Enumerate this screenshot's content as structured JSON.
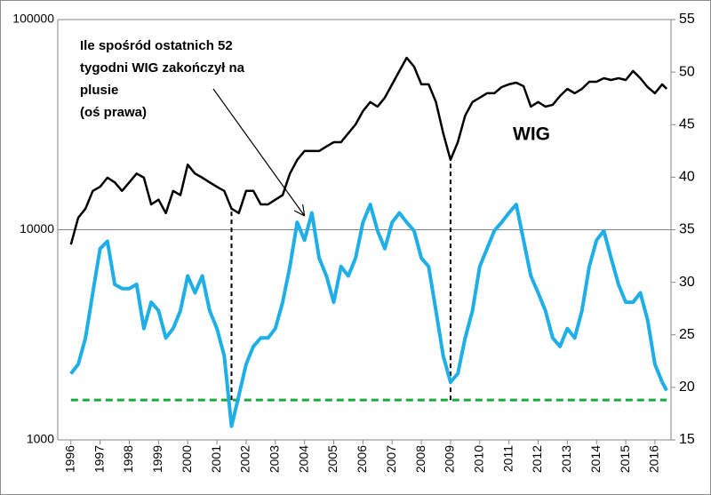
{
  "chart_data": {
    "type": "line",
    "annotation": [
      "Ile spośród ostatnich 52",
      "tygodni WIG zakończył na",
      "plusie",
      "(oś prawa)"
    ],
    "series_label": "WIG",
    "x": [
      1996.0,
      1996.25,
      1996.5,
      1996.75,
      1997.0,
      1997.25,
      1997.5,
      1997.75,
      1998.0,
      1998.25,
      1998.5,
      1998.75,
      1999.0,
      1999.25,
      1999.5,
      1999.75,
      2000.0,
      2000.25,
      2000.5,
      2000.75,
      2001.0,
      2001.25,
      2001.5,
      2001.75,
      2002.0,
      2002.25,
      2002.5,
      2002.75,
      2003.0,
      2003.25,
      2003.5,
      2003.75,
      2004.0,
      2004.25,
      2004.5,
      2004.75,
      2005.0,
      2005.25,
      2005.5,
      2005.75,
      2006.0,
      2006.25,
      2006.5,
      2006.75,
      2007.0,
      2007.25,
      2007.5,
      2007.75,
      2008.0,
      2008.25,
      2008.5,
      2008.75,
      2009.0,
      2009.25,
      2009.5,
      2009.75,
      2010.0,
      2010.25,
      2010.5,
      2010.75,
      2011.0,
      2011.25,
      2011.5,
      2011.75,
      2012.0,
      2012.25,
      2012.5,
      2012.75,
      2013.0,
      2013.25,
      2013.5,
      2013.75,
      2014.0,
      2014.25,
      2014.5,
      2014.75,
      2015.0,
      2015.25,
      2015.5,
      2015.75,
      2016.0,
      2016.25,
      2016.4
    ],
    "series": [
      {
        "name": "WIG",
        "color": "#000000",
        "axis": "y",
        "values": [
          8500,
          11400,
          12600,
          15300,
          16000,
          17700,
          16800,
          15300,
          16800,
          18500,
          17700,
          13200,
          13900,
          12000,
          15300,
          14600,
          20400,
          18500,
          17700,
          16800,
          16000,
          15300,
          12600,
          12000,
          15300,
          15300,
          13200,
          13200,
          13900,
          14600,
          18500,
          21500,
          23700,
          23700,
          23700,
          24900,
          26100,
          26100,
          28800,
          31700,
          36700,
          40500,
          38500,
          42500,
          49200,
          56900,
          65800,
          59700,
          49200,
          49200,
          40500,
          28800,
          21500,
          26100,
          34900,
          40500,
          42500,
          44600,
          44600,
          47700,
          49200,
          50100,
          48200,
          38500,
          40500,
          38500,
          39300,
          43300,
          46800,
          44600,
          46800,
          50600,
          50600,
          52600,
          51600,
          52600,
          51600,
          56900,
          52600,
          47700,
          44600,
          49200,
          46800
        ]
      },
      {
        "name": "Ile spośród ostatnich 52 tygodni WIG zakończył na plusie",
        "color": "#1eaee8",
        "axis": "y2",
        "values": [
          21.3,
          22.2,
          24.7,
          29,
          33.2,
          33.9,
          29.8,
          29.4,
          29.4,
          29.8,
          25.6,
          28.1,
          27.3,
          24.7,
          25.6,
          27.3,
          30.6,
          29,
          30.6,
          27.3,
          25.6,
          23,
          16.3,
          19.2,
          22.2,
          23.9,
          24.7,
          24.7,
          25.6,
          28.1,
          31.5,
          35.7,
          34,
          36.6,
          32.3,
          30.6,
          28.1,
          31.5,
          30.6,
          32.3,
          35.7,
          37.4,
          34.9,
          33.2,
          35.7,
          36.6,
          35.7,
          34.9,
          32.3,
          31.5,
          27.3,
          23,
          20.5,
          21.3,
          24.7,
          27.3,
          31.5,
          33.2,
          34.9,
          35.7,
          36.6,
          37.4,
          34,
          30.6,
          29,
          27.3,
          24.7,
          23.9,
          25.6,
          24.7,
          27.3,
          31.5,
          34,
          34.9,
          32.3,
          29.8,
          28.1,
          28.1,
          29,
          26.4,
          22.2,
          20.5,
          19.7
        ]
      }
    ],
    "reference_line": {
      "value": 18.8,
      "color": "#1aaa3c",
      "axis": "y2"
    },
    "vlines": [
      2001.5,
      2009.0
    ],
    "xlim": [
      1995.55,
      2016.55
    ],
    "xticks": [
      1996,
      1997,
      1998,
      1999,
      2000,
      2001,
      2002,
      2003,
      2004,
      2005,
      2006,
      2007,
      2008,
      2009,
      2010,
      2011,
      2012,
      2013,
      2014,
      2015,
      2016
    ],
    "ylim": [
      1000,
      100000
    ],
    "yticks": [
      1000,
      10000,
      100000
    ],
    "ylog": true,
    "y2lim": [
      15,
      55
    ],
    "y2ticks": [
      15,
      20,
      25,
      30,
      35,
      40,
      45,
      50,
      55
    ],
    "grid": true
  }
}
